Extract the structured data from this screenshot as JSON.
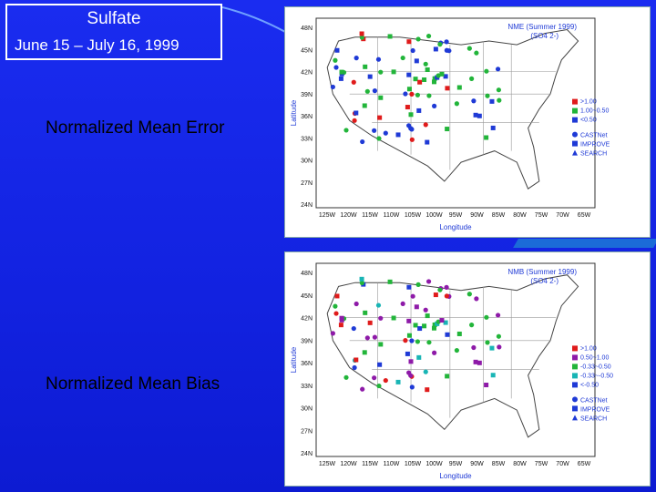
{
  "title": {
    "line1": "Sulfate",
    "line2": "June 15 –  July 16, 1999"
  },
  "labels": {
    "nme": "Normalized Mean Error",
    "nmb": "Normalized Mean Bias"
  },
  "map_top": {
    "heading": "NME (Summer 1999)",
    "species": "(SO4 2-)",
    "legend": [
      {
        "label": ">1.00",
        "color": "#e01b1b"
      },
      {
        "label": "1.00~0.50",
        "color": "#22b53a"
      },
      {
        "label": "<0.50",
        "color": "#1f3ad6"
      }
    ]
  },
  "map_bottom": {
    "heading": "NMB (Summer 1999)",
    "species": "(SO4 2-)",
    "legend": [
      {
        "label": ">1.00",
        "color": "#e01b1b"
      },
      {
        "label": "0.50~1.00",
        "color": "#8e1aa8"
      },
      {
        "label": "-0.33~0.50",
        "color": "#22b53a"
      },
      {
        "label": "-0.33~-0.50",
        "color": "#19b5b5"
      },
      {
        "label": "<-0.50",
        "color": "#1f3ad6"
      }
    ]
  },
  "networks": [
    "CASTNet",
    "IMPROVE",
    "SEARCH"
  ],
  "lat_ticks": [
    "48N",
    "45N",
    "42N",
    "39N",
    "36N",
    "33N",
    "30N",
    "27N",
    "24N"
  ],
  "lon_ticks": [
    "125W",
    "120W",
    "115W",
    "110W",
    "105W",
    "100W",
    "95W",
    "90W",
    "85W",
    "80W",
    "75W",
    "70W",
    "65W"
  ],
  "axis": {
    "x": "Longitude",
    "y": "Latitude"
  },
  "colors": {
    "background": "#1222e0",
    "red": "#e01b1b",
    "green": "#22b53a",
    "blue": "#1f3ad6",
    "purple": "#8e1aa8",
    "cyan": "#19b5b5"
  }
}
